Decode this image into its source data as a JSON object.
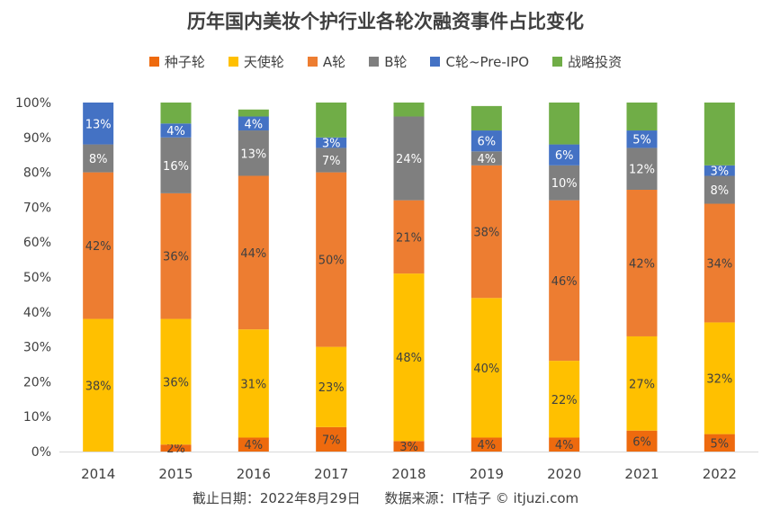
{
  "chart_data": {
    "type": "bar",
    "stacked": true,
    "title": "历年国内美妆个护行业各轮次融资事件占比变化",
    "categories": [
      "2014",
      "2015",
      "2016",
      "2017",
      "2018",
      "2019",
      "2020",
      "2021",
      "2022"
    ],
    "ylim": [
      0,
      100
    ],
    "yticks": [
      "0%",
      "10%",
      "20%",
      "30%",
      "40%",
      "50%",
      "60%",
      "70%",
      "80%",
      "90%",
      "100%"
    ],
    "legend_position": "top",
    "series": [
      {
        "name": "种子轮",
        "color": "#EE6A0E",
        "values": [
          0,
          2,
          4,
          7,
          3,
          4,
          4,
          6,
          5
        ],
        "labels": [
          "",
          "2%",
          "4%",
          "7%",
          "3%",
          "4%",
          "4%",
          "6%",
          "5%"
        ]
      },
      {
        "name": "天使轮",
        "color": "#FFC000",
        "values": [
          38,
          36,
          31,
          23,
          48,
          40,
          22,
          27,
          32
        ],
        "labels": [
          "38%",
          "36%",
          "31%",
          "23%",
          "48%",
          "40%",
          "22%",
          "27%",
          "32%"
        ]
      },
      {
        "name": "A轮",
        "color": "#ED7D31",
        "values": [
          42,
          36,
          44,
          50,
          21,
          38,
          46,
          42,
          34
        ],
        "labels": [
          "42%",
          "36%",
          "44%",
          "50%",
          "21%",
          "38%",
          "46%",
          "42%",
          "34%"
        ]
      },
      {
        "name": "B轮",
        "color": "#7F7F7F",
        "values": [
          8,
          16,
          13,
          7,
          24,
          4,
          10,
          12,
          8
        ],
        "labels": [
          "8%",
          "16%",
          "13%",
          "7%",
          "24%",
          "4%",
          "10%",
          "12%",
          "8%"
        ]
      },
      {
        "name": "C轮~Pre-IPO",
        "color": "#4472C4",
        "values": [
          13,
          4,
          4,
          3,
          0,
          6,
          6,
          5,
          3
        ],
        "labels": [
          "13%",
          "4%",
          "4%",
          "3%",
          "",
          "6%",
          "6%",
          "5%",
          "3%"
        ]
      },
      {
        "name": "战略投资",
        "color": "#70AD47",
        "values": [
          0,
          6,
          2,
          10,
          4,
          7,
          12,
          8,
          18
        ],
        "labels": [
          "",
          "",
          "",
          "",
          "",
          "",
          "",
          "",
          ""
        ]
      }
    ]
  },
  "footer": {
    "date_text": "截止日期：2022年8月29日",
    "source_text": "数据来源：IT桔子 © itjuzi.com"
  }
}
